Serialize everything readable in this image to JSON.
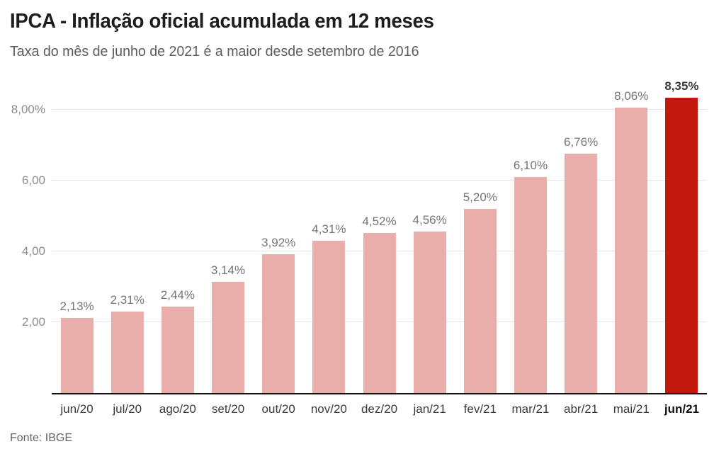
{
  "header": {
    "title": "IPCA - Inflação oficial acumulada em 12 meses",
    "subtitle": "Taxa do mês de junho de 2021 é a maior desde setembro de 2016"
  },
  "footer": {
    "source": "Fonte: IBGE"
  },
  "chart_data": {
    "type": "bar",
    "title": "IPCA - Inflação oficial acumulada em 12 meses",
    "subtitle": "Taxa do mês de junho de 2021 é a maior desde setembro de 2016",
    "source": "Fonte: IBGE",
    "categories": [
      "jun/20",
      "jul/20",
      "ago/20",
      "set/20",
      "out/20",
      "nov/20",
      "dez/20",
      "jan/21",
      "fev/21",
      "mar/21",
      "abr/21",
      "mai/21",
      "jun/21"
    ],
    "values": [
      2.13,
      2.31,
      2.44,
      3.14,
      3.92,
      4.31,
      4.52,
      4.56,
      5.2,
      6.1,
      6.76,
      8.06,
      8.35
    ],
    "value_labels": [
      "2,13%",
      "2,31%",
      "2,44%",
      "3,14%",
      "3,92%",
      "4,31%",
      "4,52%",
      "4,56%",
      "5,20%",
      "6,10%",
      "6,76%",
      "8,06%",
      "8,35%"
    ],
    "highlight_index": 12,
    "highlight_category": "jun/21",
    "xlabel": "",
    "ylabel": "",
    "yticks": [
      {
        "value": 2.0,
        "label": "2,00"
      },
      {
        "value": 4.0,
        "label": "4,00"
      },
      {
        "value": 6.0,
        "label": "6,00"
      },
      {
        "value": 8.0,
        "label": "8,00%"
      }
    ],
    "ylim": [
      0,
      8.8
    ],
    "grid": true,
    "legend": false,
    "colors": {
      "bar": "#e9adaa",
      "highlight_bar": "#c2180e",
      "value_label": "#757575",
      "highlight_value_label": "#3c3c3c",
      "tick_label": "#8c8c8c",
      "month_label": "#3a3a3a",
      "highlight_month_label": "#111111",
      "axis_line": "#111111",
      "gridline": "#e4e4e4"
    }
  }
}
